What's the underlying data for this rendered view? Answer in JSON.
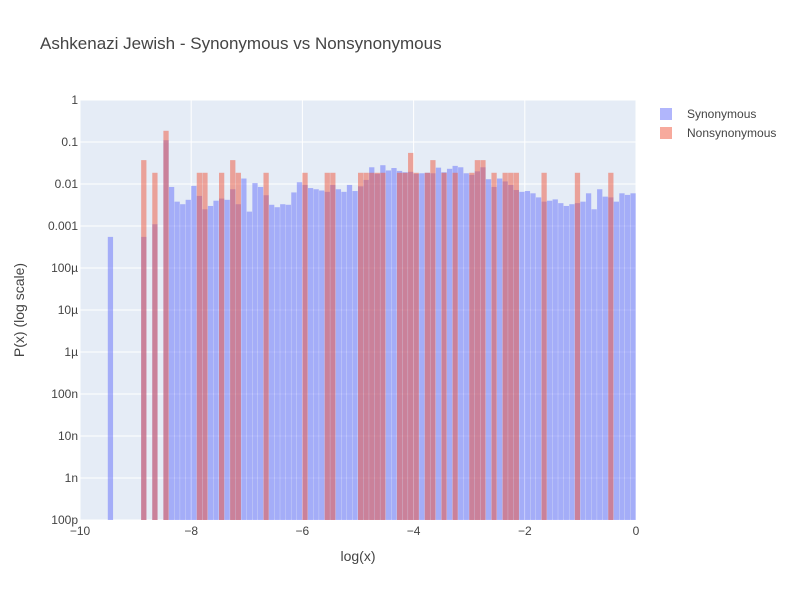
{
  "chart_data": {
    "type": "bar",
    "title": "Ashkenazi Jewish - Synonymous vs Nonsynonymous",
    "xlabel": "log(x)",
    "ylabel": "P(x) (log scale)",
    "xlim": [
      -10,
      0
    ],
    "ylim": [
      1e-10,
      1
    ],
    "y_scale": "log",
    "grid": true,
    "barmode": "overlay",
    "legend_position": "top-right",
    "x_ticks": [
      "−10",
      "−8",
      "−6",
      "−4",
      "−2",
      "0"
    ],
    "y_ticks": [
      "100p",
      "1n",
      "10n",
      "100n",
      "1µ",
      "10µ",
      "100µ",
      "0.001",
      "0.01",
      "0.1",
      "1"
    ],
    "series": [
      {
        "name": "Synonymous",
        "color": "#636efa",
        "opacity": 0.5,
        "bin_width": 0.1,
        "x": [
          -9.45,
          -8.85,
          -8.65,
          -8.45,
          -8.35,
          -8.25,
          -8.15,
          -8.05,
          -7.95,
          -7.85,
          -7.75,
          -7.65,
          -7.55,
          -7.45,
          -7.35,
          -7.25,
          -7.15,
          -7.05,
          -6.95,
          -6.85,
          -6.75,
          -6.65,
          -6.55,
          -6.45,
          -6.35,
          -6.25,
          -6.15,
          -6.05,
          -5.95,
          -5.85,
          -5.75,
          -5.65,
          -5.55,
          -5.45,
          -5.35,
          -5.25,
          -5.15,
          -5.05,
          -4.95,
          -4.85,
          -4.75,
          -4.65,
          -4.55,
          -4.45,
          -4.35,
          -4.25,
          -4.15,
          -4.05,
          -3.95,
          -3.85,
          -3.75,
          -3.65,
          -3.55,
          -3.45,
          -3.35,
          -3.25,
          -3.15,
          -3.05,
          -2.95,
          -2.85,
          -2.75,
          -2.65,
          -2.55,
          -2.45,
          -2.35,
          -2.25,
          -2.15,
          -2.05,
          -1.95,
          -1.85,
          -1.75,
          -1.65,
          -1.55,
          -1.45,
          -1.35,
          -1.25,
          -1.15,
          -1.05,
          -0.95,
          -0.85,
          -0.75,
          -0.65,
          -0.55,
          -0.45,
          -0.35,
          -0.25,
          -0.15,
          -0.05
        ],
        "values": [
          0.00055,
          0.00055,
          0.0011,
          0.11,
          0.0085,
          0.0038,
          0.0033,
          0.0042,
          0.009,
          0.0052,
          0.0025,
          0.003,
          0.004,
          0.0045,
          0.0042,
          0.0075,
          0.0033,
          0.0135,
          0.0022,
          0.0105,
          0.0085,
          0.0054,
          0.0032,
          0.0028,
          0.0033,
          0.0032,
          0.0063,
          0.011,
          0.0095,
          0.008,
          0.0075,
          0.007,
          0.0065,
          0.0095,
          0.0075,
          0.0065,
          0.0095,
          0.0068,
          0.0088,
          0.0125,
          0.025,
          0.0175,
          0.028,
          0.021,
          0.024,
          0.0205,
          0.019,
          0.0195,
          0.0175,
          0.018,
          0.0185,
          0.018,
          0.0245,
          0.019,
          0.023,
          0.027,
          0.025,
          0.018,
          0.0165,
          0.02,
          0.025,
          0.013,
          0.0085,
          0.0135,
          0.0115,
          0.0095,
          0.0072,
          0.0065,
          0.0068,
          0.006,
          0.0048,
          0.0038,
          0.004,
          0.0043,
          0.0035,
          0.003,
          0.0033,
          0.0035,
          0.0038,
          0.006,
          0.0025,
          0.0075,
          0.005,
          0.0048,
          0.0038,
          0.006,
          0.0055,
          0.006
        ]
      },
      {
        "name": "Nonsynonymous",
        "color": "#ef553b",
        "opacity": 0.5,
        "bin_width": 0.1,
        "x": [
          -8.85,
          -8.65,
          -8.45,
          -7.85,
          -7.75,
          -7.45,
          -7.25,
          -7.15,
          -6.65,
          -5.95,
          -5.55,
          -5.45,
          -4.95,
          -4.85,
          -4.75,
          -4.65,
          -4.55,
          -4.25,
          -4.15,
          -4.05,
          -3.95,
          -3.75,
          -3.65,
          -3.45,
          -3.25,
          -2.95,
          -2.85,
          -2.75,
          -2.55,
          -2.35,
          -2.25,
          -2.15,
          -1.65,
          -1.05,
          -0.45
        ],
        "values": [
          0.037,
          0.0185,
          0.185,
          0.0185,
          0.0185,
          0.0185,
          0.037,
          0.0185,
          0.0185,
          0.0185,
          0.0185,
          0.0185,
          0.0185,
          0.0185,
          0.0185,
          0.0185,
          0.0185,
          0.0185,
          0.0185,
          0.055,
          0.0185,
          0.0185,
          0.037,
          0.0185,
          0.0185,
          0.0185,
          0.037,
          0.037,
          0.0185,
          0.0185,
          0.0185,
          0.0185,
          0.0185,
          0.0185,
          0.0185
        ]
      }
    ]
  }
}
